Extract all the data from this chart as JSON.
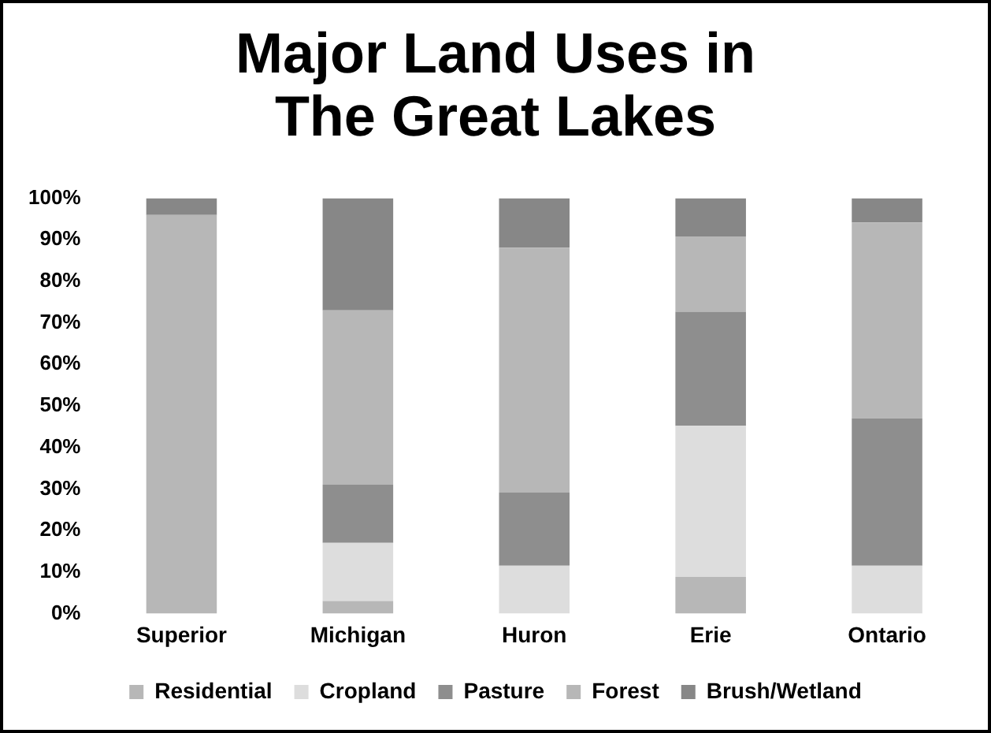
{
  "chart_data": {
    "type": "bar",
    "title": "Major Land Uses in The Great Lakes",
    "categories": [
      "Superior",
      "Michigan",
      "Huron",
      "Erie",
      "Ontario"
    ],
    "stacked": true,
    "ylim": [
      0,
      100
    ],
    "yticks": [
      {
        "value": 0,
        "label": "0%"
      },
      {
        "value": 10,
        "label": "10%"
      },
      {
        "value": 20,
        "label": "20%"
      },
      {
        "value": 30,
        "label": "30%"
      },
      {
        "value": 40,
        "label": "40%"
      },
      {
        "value": 50,
        "label": "50%"
      },
      {
        "value": 60,
        "label": "60%"
      },
      {
        "value": 70,
        "label": "70%"
      },
      {
        "value": 80,
        "label": "80%"
      },
      {
        "value": 90,
        "label": "90%"
      },
      {
        "value": 100,
        "label": "100%"
      }
    ],
    "grid": false,
    "legend": "bottom",
    "series": [
      {
        "name": "Residential",
        "color": "#b7b7b7",
        "values": [
          0,
          3,
          0,
          8.8,
          0
        ]
      },
      {
        "name": "Cropland",
        "color": "#dddddd",
        "values": [
          0,
          14,
          11.5,
          36.4,
          11.5
        ]
      },
      {
        "name": "Pasture",
        "color": "#8e8e8e",
        "values": [
          0,
          14,
          17.6,
          27.5,
          35.5
        ]
      },
      {
        "name": "Forest",
        "color": "#b7b7b7",
        "values": [
          96,
          42,
          59,
          18.1,
          47.2
        ]
      },
      {
        "name": "Brush/Wetland",
        "color": "#878787",
        "values": [
          4,
          27,
          11.9,
          9.2,
          5.8
        ]
      }
    ]
  }
}
